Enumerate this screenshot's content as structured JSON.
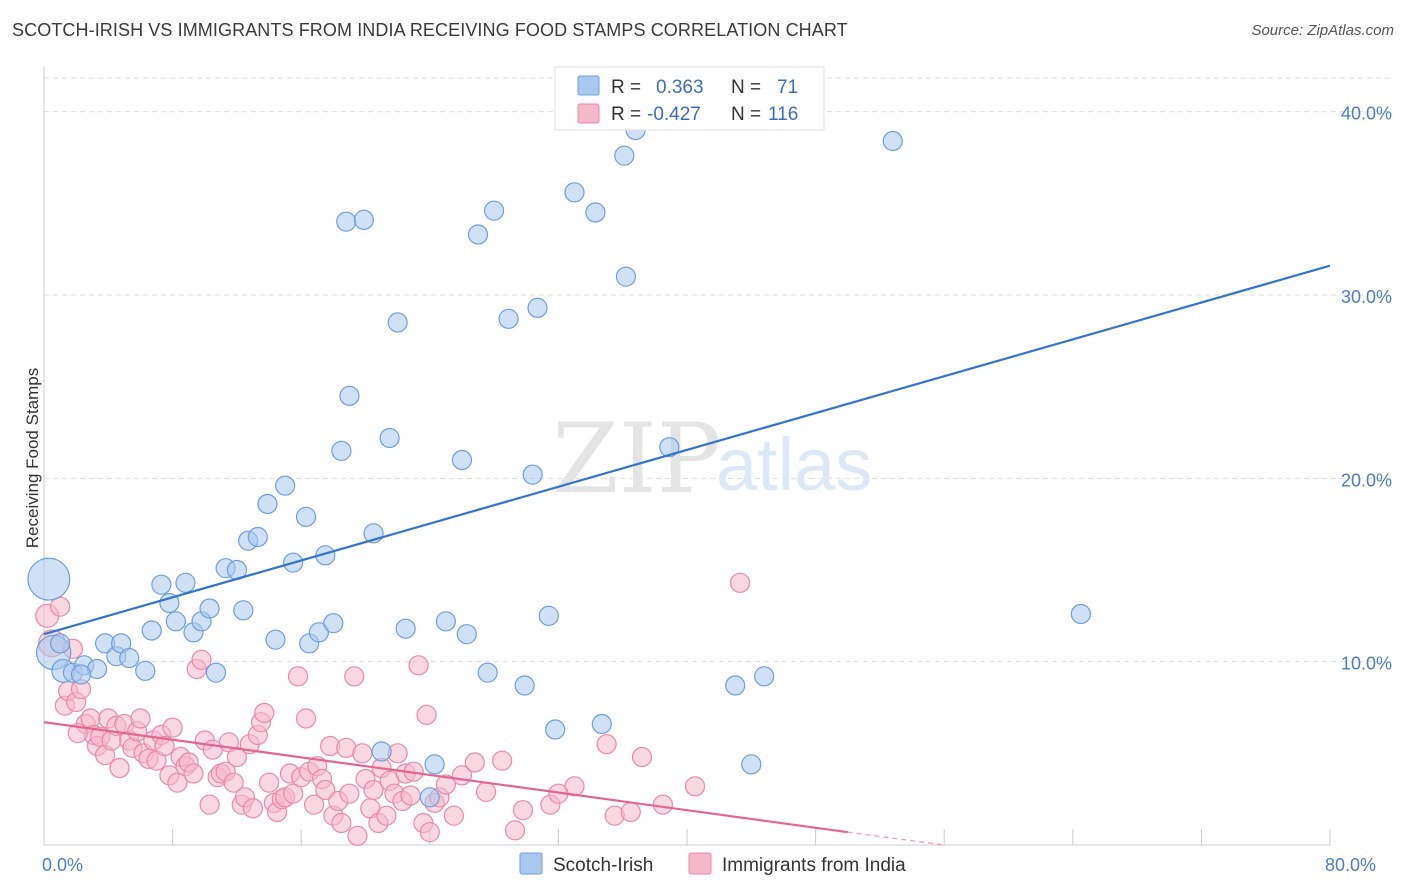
{
  "title": "SCOTCH-IRISH VS IMMIGRANTS FROM INDIA RECEIVING FOOD STAMPS CORRELATION CHART",
  "source": "Source: ZipAtlas.com",
  "watermark": {
    "zip": "ZIP",
    "atlas": "atlas"
  },
  "colors": {
    "blue_fill": "#a9c8ef",
    "blue_stroke": "#6d9fd9",
    "blue_line": "#3374cf",
    "pink_fill": "#f5b8cb",
    "pink_stroke": "#e88aa8",
    "pink_line": "#e06690",
    "axis_text": "#4a7cc9",
    "grid": "#dddddd"
  },
  "legend": {
    "rows": [
      {
        "r_label": "R =",
        "r_value": "0.363",
        "n_label": "N =",
        "n_value": "71"
      },
      {
        "r_label": "R =",
        "r_value": "-0.427",
        "n_label": "N =",
        "n_value": "116"
      }
    ]
  },
  "bottom_legend": [
    "Scotch-Irish",
    "Immigrants from India"
  ],
  "chart_data": {
    "type": "scatter",
    "title": "SCOTCH-IRISH VS IMMIGRANTS FROM INDIA RECEIVING FOOD STAMPS CORRELATION CHART",
    "xlabel": "",
    "ylabel": "Receiving Food Stamps",
    "xlim": [
      0,
      80
    ],
    "ylim": [
      0,
      42
    ],
    "x_tick_labels": [
      {
        "value": 0,
        "label": "0.0%"
      },
      {
        "value": 80,
        "label": "80.0%"
      }
    ],
    "y_tick_labels": [
      {
        "value": 10,
        "label": "10.0%"
      },
      {
        "value": 20,
        "label": "20.0%"
      },
      {
        "value": 30,
        "label": "30.0%"
      },
      {
        "value": 40,
        "label": "40.0%"
      }
    ],
    "grid": true,
    "legend_position": "top-center",
    "series": [
      {
        "name": "Scotch-Irish",
        "r": 0.363,
        "n": 71,
        "trend": {
          "x": [
            0,
            80
          ],
          "y": [
            11.5,
            31.6
          ]
        },
        "points": [
          [
            0.3,
            14.5,
            2.2
          ],
          [
            0.6,
            10.5,
            1.8
          ],
          [
            1.2,
            9.5,
            1.2
          ],
          [
            1.8,
            9.4,
            1
          ],
          [
            2.5,
            9.8,
            1
          ],
          [
            3.3,
            9.6,
            1
          ],
          [
            3.8,
            11.0,
            1
          ],
          [
            4.5,
            10.3,
            1
          ],
          [
            4.8,
            11.0,
            1
          ],
          [
            5.3,
            10.2,
            1
          ],
          [
            6.3,
            9.5,
            1
          ],
          [
            6.7,
            11.7,
            1
          ],
          [
            7.3,
            14.2,
            1
          ],
          [
            7.8,
            13.2,
            1
          ],
          [
            8.2,
            12.2,
            1
          ],
          [
            8.8,
            14.3,
            1
          ],
          [
            9.3,
            11.6,
            1
          ],
          [
            9.8,
            12.2,
            1
          ],
          [
            10.3,
            12.9,
            1
          ],
          [
            10.7,
            9.4,
            1
          ],
          [
            11.3,
            15.1,
            1
          ],
          [
            12.0,
            15.0,
            1
          ],
          [
            12.4,
            12.8,
            1
          ],
          [
            12.7,
            16.6,
            1
          ],
          [
            13.3,
            16.8,
            1
          ],
          [
            13.9,
            18.6,
            1
          ],
          [
            14.4,
            11.2,
            1
          ],
          [
            15.0,
            19.6,
            1
          ],
          [
            15.5,
            15.4,
            1
          ],
          [
            16.3,
            17.9,
            1
          ],
          [
            16.5,
            11.0,
            1
          ],
          [
            17.1,
            11.6,
            1
          ],
          [
            17.5,
            15.8,
            1
          ],
          [
            18.0,
            12.1,
            1
          ],
          [
            18.5,
            21.5,
            1
          ],
          [
            18.8,
            34.0,
            1
          ],
          [
            19.0,
            24.5,
            1
          ],
          [
            19.9,
            34.1,
            1
          ],
          [
            20.5,
            17.0,
            1
          ],
          [
            21.0,
            5.1,
            1
          ],
          [
            21.5,
            22.2,
            1
          ],
          [
            22.0,
            28.5,
            1
          ],
          [
            22.5,
            11.8,
            1
          ],
          [
            24.0,
            2.6,
            1
          ],
          [
            24.3,
            4.4,
            1
          ],
          [
            25.0,
            12.2,
            1
          ],
          [
            26.0,
            21.0,
            1
          ],
          [
            26.3,
            11.5,
            1
          ],
          [
            27.0,
            33.3,
            1
          ],
          [
            27.6,
            9.4,
            1
          ],
          [
            28.0,
            34.6,
            1
          ],
          [
            28.9,
            28.7,
            1
          ],
          [
            29.9,
            8.7,
            1
          ],
          [
            30.4,
            20.2,
            1
          ],
          [
            30.7,
            29.3,
            1
          ],
          [
            31.4,
            12.5,
            1
          ],
          [
            31.8,
            6.3,
            1
          ],
          [
            33.0,
            35.6,
            1
          ],
          [
            34.3,
            34.5,
            1
          ],
          [
            34.7,
            6.6,
            1
          ],
          [
            36.1,
            37.6,
            1
          ],
          [
            36.2,
            31.0,
            1
          ],
          [
            36.8,
            39.0,
            1
          ],
          [
            38.9,
            21.7,
            1
          ],
          [
            43.0,
            8.7,
            1
          ],
          [
            44.0,
            4.4,
            1
          ],
          [
            44.8,
            9.2,
            1
          ],
          [
            52.8,
            38.4,
            1
          ],
          [
            64.5,
            12.6,
            1
          ],
          [
            2.3,
            9.3,
            1
          ],
          [
            1.0,
            11.0,
            1
          ]
        ]
      },
      {
        "name": "Immigrants from India",
        "r": -0.427,
        "n": 116,
        "trend": {
          "x": [
            0,
            50
          ],
          "y": [
            6.7,
            0.7
          ]
        },
        "trend_dashed_extension": {
          "x": [
            50,
            56
          ],
          "y": [
            0.7,
            0.0
          ]
        },
        "points": [
          [
            0.2,
            12.5,
            1.2
          ],
          [
            0.5,
            11.0,
            1.4
          ],
          [
            1.0,
            13.0,
            1
          ],
          [
            1.3,
            7.6,
            1
          ],
          [
            1.5,
            8.4,
            1
          ],
          [
            1.8,
            10.7,
            1
          ],
          [
            2.0,
            7.8,
            1
          ],
          [
            2.3,
            8.5,
            1
          ],
          [
            2.6,
            6.6,
            1
          ],
          [
            2.9,
            6.9,
            1
          ],
          [
            3.1,
            6.0,
            1
          ],
          [
            3.3,
            5.4,
            1
          ],
          [
            3.5,
            5.9,
            1
          ],
          [
            3.8,
            4.9,
            1
          ],
          [
            4.0,
            6.9,
            1
          ],
          [
            4.2,
            5.7,
            1
          ],
          [
            4.5,
            6.5,
            1
          ],
          [
            4.7,
            4.2,
            1
          ],
          [
            5.0,
            6.6,
            1
          ],
          [
            5.3,
            5.7,
            1
          ],
          [
            5.5,
            5.3,
            1
          ],
          [
            5.8,
            6.2,
            1
          ],
          [
            6.0,
            6.9,
            1
          ],
          [
            6.2,
            5.0,
            1
          ],
          [
            6.5,
            4.7,
            1
          ],
          [
            6.8,
            5.7,
            1
          ],
          [
            7.0,
            4.6,
            1
          ],
          [
            7.3,
            6.0,
            1
          ],
          [
            7.5,
            5.4,
            1
          ],
          [
            7.8,
            3.8,
            1
          ],
          [
            8.0,
            6.4,
            1
          ],
          [
            8.3,
            3.4,
            1
          ],
          [
            8.5,
            4.8,
            1
          ],
          [
            8.8,
            4.3,
            1
          ],
          [
            9.0,
            4.5,
            1
          ],
          [
            9.3,
            3.9,
            1
          ],
          [
            9.5,
            9.6,
            1
          ],
          [
            9.8,
            10.1,
            1
          ],
          [
            10.0,
            5.7,
            1
          ],
          [
            10.3,
            2.2,
            1
          ],
          [
            10.5,
            5.2,
            1
          ],
          [
            10.8,
            3.7,
            1
          ],
          [
            11.0,
            3.9,
            1
          ],
          [
            11.3,
            4.0,
            1
          ],
          [
            11.5,
            5.6,
            1
          ],
          [
            11.8,
            3.4,
            1
          ],
          [
            12.0,
            4.8,
            1
          ],
          [
            12.3,
            2.2,
            1
          ],
          [
            12.5,
            2.6,
            1
          ],
          [
            12.8,
            5.5,
            1
          ],
          [
            13.0,
            2.0,
            1
          ],
          [
            13.3,
            6.0,
            1
          ],
          [
            13.5,
            6.7,
            1
          ],
          [
            13.7,
            7.2,
            1
          ],
          [
            14.0,
            3.4,
            1
          ],
          [
            14.3,
            2.3,
            1
          ],
          [
            14.5,
            1.8,
            1
          ],
          [
            14.8,
            2.5,
            1
          ],
          [
            15.0,
            2.6,
            1
          ],
          [
            15.3,
            3.9,
            1
          ],
          [
            15.5,
            2.8,
            1
          ],
          [
            15.8,
            9.2,
            1
          ],
          [
            16.0,
            3.7,
            1
          ],
          [
            16.3,
            6.9,
            1
          ],
          [
            16.5,
            4.0,
            1
          ],
          [
            16.8,
            2.2,
            1
          ],
          [
            17.0,
            4.3,
            1
          ],
          [
            17.3,
            3.6,
            1
          ],
          [
            17.5,
            3.0,
            1
          ],
          [
            17.8,
            5.4,
            1
          ],
          [
            18.0,
            1.6,
            1
          ],
          [
            18.3,
            2.4,
            1
          ],
          [
            18.5,
            1.2,
            1
          ],
          [
            18.8,
            5.3,
            1
          ],
          [
            19.0,
            2.8,
            1
          ],
          [
            19.3,
            9.2,
            1
          ],
          [
            19.5,
            0.5,
            1
          ],
          [
            19.8,
            5.0,
            1
          ],
          [
            20.0,
            3.6,
            1
          ],
          [
            20.3,
            2.0,
            1
          ],
          [
            20.5,
            3.0,
            1
          ],
          [
            20.8,
            1.2,
            1
          ],
          [
            21.0,
            4.2,
            1
          ],
          [
            21.3,
            1.6,
            1
          ],
          [
            21.5,
            3.5,
            1
          ],
          [
            21.8,
            2.8,
            1
          ],
          [
            22.0,
            5.0,
            1
          ],
          [
            22.3,
            2.4,
            1
          ],
          [
            22.5,
            3.9,
            1
          ],
          [
            22.8,
            2.7,
            1
          ],
          [
            23.0,
            4.0,
            1
          ],
          [
            23.3,
            9.8,
            1
          ],
          [
            23.6,
            1.2,
            1
          ],
          [
            23.8,
            7.1,
            1
          ],
          [
            24.0,
            0.7,
            1
          ],
          [
            24.3,
            2.3,
            1
          ],
          [
            24.6,
            2.6,
            1
          ],
          [
            25.0,
            3.3,
            1
          ],
          [
            25.5,
            1.6,
            1
          ],
          [
            26.0,
            3.8,
            1
          ],
          [
            26.8,
            4.5,
            1
          ],
          [
            27.5,
            2.9,
            1
          ],
          [
            28.5,
            4.6,
            1
          ],
          [
            29.3,
            0.8,
            1
          ],
          [
            29.8,
            1.9,
            1
          ],
          [
            31.5,
            2.2,
            1
          ],
          [
            33.0,
            3.2,
            1
          ],
          [
            35.0,
            5.5,
            1
          ],
          [
            35.5,
            1.6,
            1
          ],
          [
            36.5,
            1.8,
            1
          ],
          [
            37.2,
            4.8,
            1
          ],
          [
            38.5,
            2.2,
            1
          ],
          [
            40.5,
            3.2,
            1
          ],
          [
            43.3,
            14.3,
            1
          ],
          [
            32.0,
            2.8,
            1
          ],
          [
            2.1,
            6.1,
            1
          ]
        ]
      }
    ]
  }
}
